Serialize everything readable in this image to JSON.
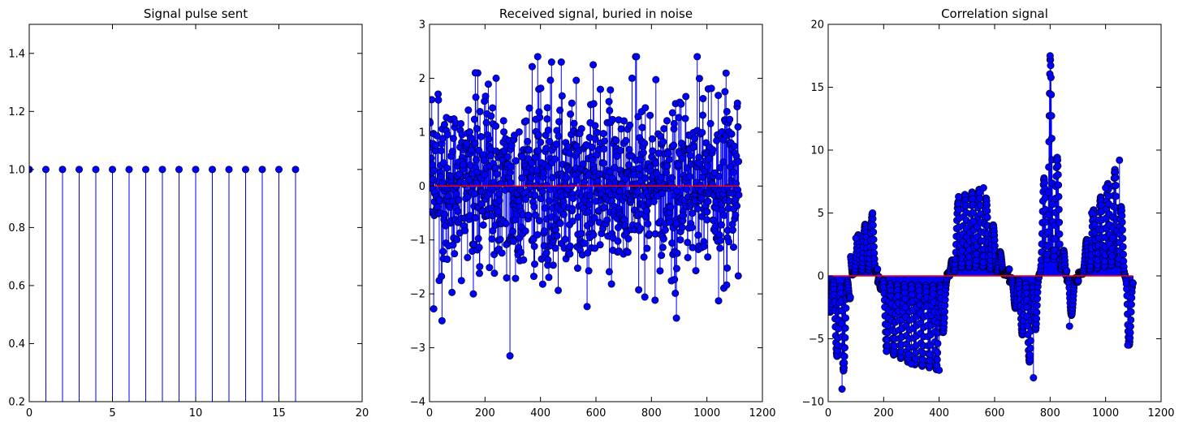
{
  "chart_data": [
    {
      "type": "stem",
      "title": "Signal pulse sent",
      "xlabel": "",
      "ylabel": "",
      "xlim": [
        0,
        20
      ],
      "ylim": [
        0.2,
        1.5
      ],
      "xticks": [
        0,
        5,
        10,
        15,
        20
      ],
      "yticks": [
        0.2,
        0.4,
        0.6,
        0.8,
        1.0,
        1.2,
        1.4
      ],
      "xtick_labels": [
        "0",
        "5",
        "10",
        "15",
        "20"
      ],
      "ytick_labels": [
        "0.2",
        "0.4",
        "0.6",
        "0.8",
        "1.0",
        "1.2",
        "1.4"
      ],
      "baseline": 0,
      "x": [
        0,
        1,
        2,
        3,
        4,
        5,
        6,
        7,
        8,
        9,
        10,
        11,
        12,
        13,
        14,
        15,
        16
      ],
      "y": [
        1,
        1,
        1,
        1,
        1,
        1,
        1,
        1,
        1,
        1,
        1,
        1,
        1,
        1,
        1,
        1,
        1
      ],
      "grid": false,
      "colors": {
        "stem": "#0000ff",
        "marker": "#0000ff",
        "baseline": "#ff0000"
      }
    },
    {
      "type": "stem",
      "title": "Received signal, buried in noise",
      "xlabel": "",
      "ylabel": "",
      "xlim": [
        0,
        1200
      ],
      "ylim": [
        -4,
        3
      ],
      "xticks": [
        0,
        200,
        400,
        600,
        800,
        1000,
        1200
      ],
      "yticks": [
        -4,
        -3,
        -2,
        -1,
        0,
        1,
        2,
        3
      ],
      "xtick_labels": [
        "0",
        "200",
        "400",
        "600",
        "800",
        "1000",
        "1200"
      ],
      "ytick_labels": [
        "−4",
        "−3",
        "−2",
        "−1",
        "0",
        "1",
        "2",
        "3"
      ],
      "baseline": 0,
      "x_range": [
        0,
        1115
      ],
      "y_range_observed": [
        -3.15,
        2.4
      ],
      "notable_points": [
        {
          "x": 165,
          "y": 2.1
        },
        {
          "x": 240,
          "y": 2.0
        },
        {
          "x": 290,
          "y": -3.15
        },
        {
          "x": 440,
          "y": 2.3
        },
        {
          "x": 475,
          "y": 2.3
        },
        {
          "x": 590,
          "y": 2.25
        },
        {
          "x": 730,
          "y": 2.0
        },
        {
          "x": 890,
          "y": -2.45
        },
        {
          "x": 965,
          "y": 2.4
        },
        {
          "x": 45,
          "y": -2.5
        }
      ],
      "grid": false,
      "colors": {
        "stem": "#0000ff",
        "marker": "#0000ff",
        "baseline": "#ff0000"
      }
    },
    {
      "type": "stem",
      "title": "Correlation signal",
      "xlabel": "",
      "ylabel": "",
      "xlim": [
        0,
        1200
      ],
      "ylim": [
        -10,
        20
      ],
      "xticks": [
        0,
        200,
        400,
        600,
        800,
        1000,
        1200
      ],
      "yticks": [
        -10,
        -5,
        0,
        5,
        10,
        15,
        20
      ],
      "xtick_labels": [
        "0",
        "200",
        "400",
        "600",
        "800",
        "1000",
        "1200"
      ],
      "ytick_labels": [
        "−10",
        "−5",
        "0",
        "5",
        "10",
        "15",
        "20"
      ],
      "baseline": 0,
      "x_range": [
        0,
        1099
      ],
      "envelope": [
        {
          "x": 0,
          "y": -2
        },
        {
          "x": 50,
          "y": -9
        },
        {
          "x": 100,
          "y": 3
        },
        {
          "x": 160,
          "y": 5
        },
        {
          "x": 210,
          "y": -6
        },
        {
          "x": 300,
          "y": -7
        },
        {
          "x": 400,
          "y": -7.5
        },
        {
          "x": 470,
          "y": 6.3
        },
        {
          "x": 560,
          "y": 7
        },
        {
          "x": 740,
          "y": -8.1
        },
        {
          "x": 800,
          "y": 17.5
        },
        {
          "x": 870,
          "y": -4
        },
        {
          "x": 950,
          "y": 5
        },
        {
          "x": 1000,
          "y": 7
        },
        {
          "x": 1050,
          "y": 9.2
        },
        {
          "x": 1080,
          "y": -5.5
        }
      ],
      "grid": false,
      "colors": {
        "stem": "#0000ff",
        "marker": "#0000ff",
        "baseline": "#ff0000"
      }
    }
  ]
}
